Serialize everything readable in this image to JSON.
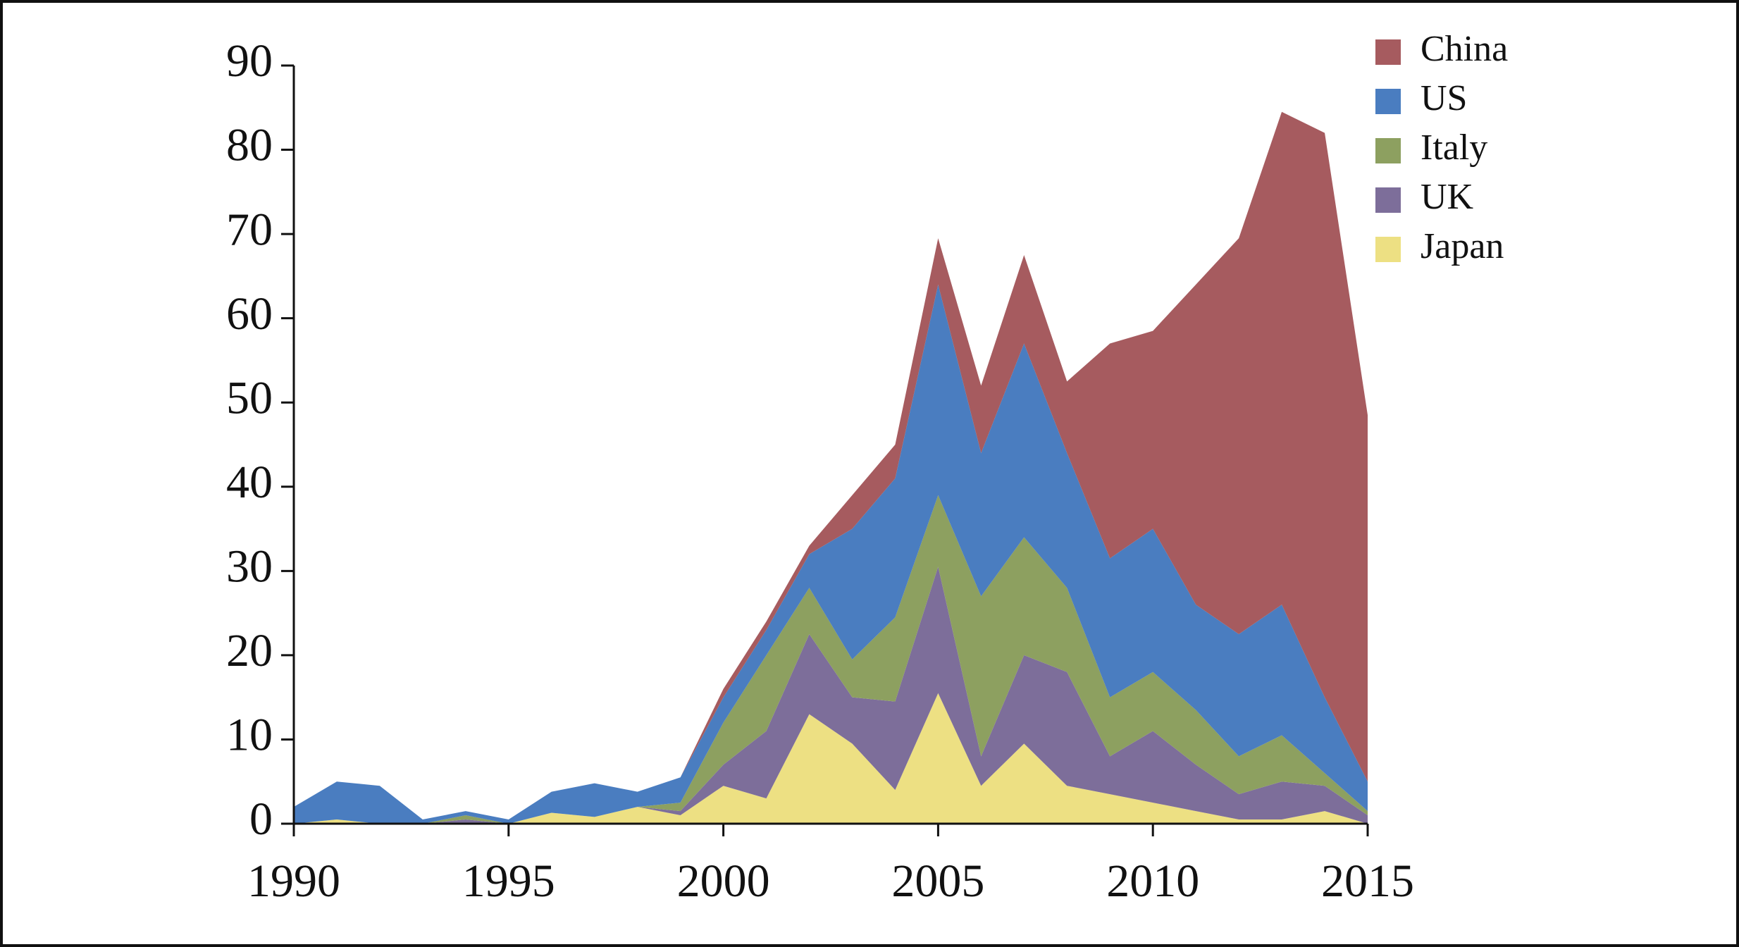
{
  "chart_data": {
    "type": "stacked_area",
    "x": [
      1990,
      1991,
      1992,
      1993,
      1994,
      1995,
      1996,
      1997,
      1998,
      1999,
      2000,
      2001,
      2002,
      2003,
      2004,
      2005,
      2006,
      2007,
      2008,
      2009,
      2010,
      2011,
      2012,
      2013,
      2014,
      2015
    ],
    "series": [
      {
        "name": "China",
        "color": "#a65b5f",
        "values": [
          0,
          0,
          0,
          0,
          0,
          0,
          0,
          0,
          0,
          0,
          1,
          1,
          1,
          4,
          4,
          5.5,
          8,
          10.5,
          8.5,
          25.5,
          23.5,
          38,
          47,
          58.5,
          67,
          43.5
        ]
      },
      {
        "name": "US",
        "color": "#4a7dc0",
        "values": [
          2,
          4.5,
          4.5,
          0.5,
          0.5,
          0.5,
          2.5,
          4,
          1.8,
          3,
          3,
          3,
          4,
          15.5,
          16.5,
          25,
          17,
          23,
          16,
          16.5,
          17,
          12.5,
          14.5,
          15.5,
          9,
          3.5
        ]
      },
      {
        "name": "Italy",
        "color": "#8da060",
        "values": [
          0,
          0,
          0,
          0,
          0.5,
          0,
          0,
          0,
          0,
          1,
          5,
          9,
          5.5,
          4.5,
          10,
          8.5,
          19,
          14,
          10,
          7,
          7,
          6.5,
          4.5,
          5.5,
          1.5,
          0.5
        ]
      },
      {
        "name": "UK",
        "color": "#7d6e9a",
        "values": [
          0,
          0,
          0,
          0,
          0.5,
          0,
          0,
          0,
          0,
          0.5,
          2.5,
          8,
          9.5,
          5.5,
          10.5,
          15,
          3.5,
          10.5,
          13.5,
          4.5,
          8.5,
          5.5,
          3,
          4.5,
          3,
          1
        ]
      },
      {
        "name": "Japan",
        "color": "#ede083",
        "values": [
          0,
          0.5,
          0,
          0,
          0,
          0,
          1.3,
          0.8,
          2,
          1,
          4.5,
          3,
          13,
          9.5,
          4,
          15.5,
          4.5,
          9.5,
          4.5,
          3.5,
          2.5,
          1.5,
          0.5,
          0.5,
          1.5,
          0
        ]
      }
    ],
    "xlim": [
      1990,
      2015
    ],
    "xticks": [
      1990,
      1995,
      2000,
      2005,
      2010,
      2015
    ],
    "ylim": [
      0,
      90
    ],
    "yticks": [
      0,
      10,
      20,
      30,
      40,
      50,
      60,
      70,
      80,
      90
    ],
    "grid": false,
    "legend": "top-right"
  }
}
